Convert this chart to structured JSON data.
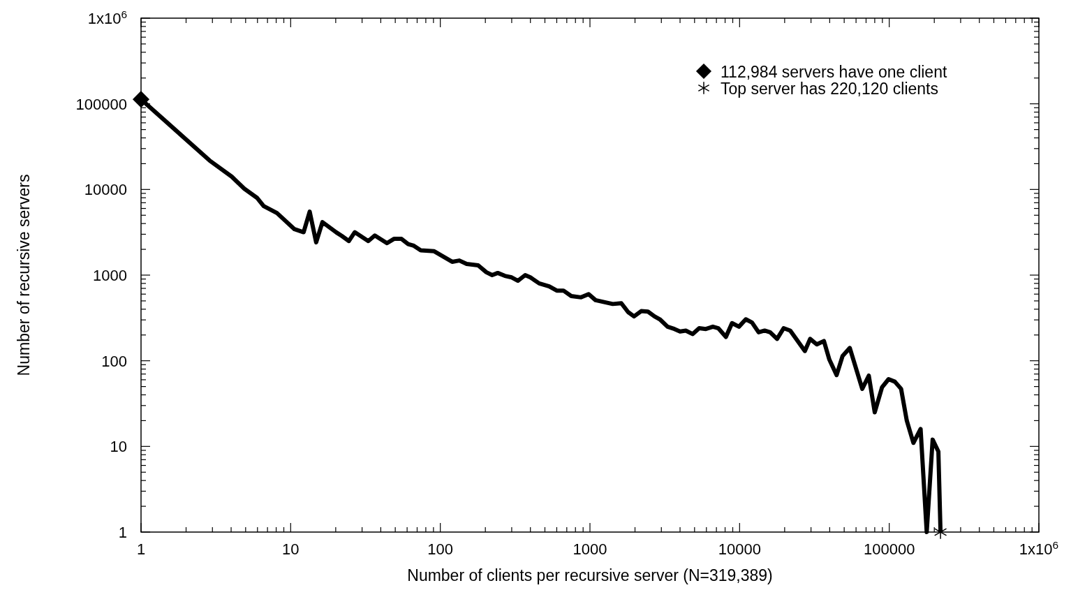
{
  "chart_data": {
    "type": "line",
    "xlabel": "Number of clients per recursive server (N=319,389)",
    "ylabel": "Number of recursive servers",
    "log": "xy",
    "xlim": [
      1,
      1000000
    ],
    "ylim": [
      1,
      1000000
    ],
    "xticks": [
      1,
      {
        "value": 2,
        "label": null
      },
      {
        "value": 3,
        "label": null
      },
      {
        "value": 4,
        "label": null
      },
      {
        "value": 5,
        "label": null
      },
      {
        "value": 6,
        "label": null
      },
      {
        "value": 7,
        "label": null
      },
      {
        "value": 8,
        "label": null
      },
      {
        "value": 9,
        "label": null
      },
      10,
      {
        "value": 20,
        "label": null
      },
      {
        "value": 30,
        "label": null
      },
      {
        "value": 40,
        "label": null
      },
      {
        "value": 50,
        "label": null
      },
      {
        "value": 60,
        "label": null
      },
      {
        "value": 70,
        "label": null
      },
      {
        "value": 80,
        "label": null
      },
      {
        "value": 90,
        "label": null
      },
      100,
      {
        "value": 200,
        "label": null
      },
      {
        "value": 300,
        "label": null
      },
      {
        "value": 400,
        "label": null
      },
      {
        "value": 500,
        "label": null
      },
      {
        "value": 600,
        "label": null
      },
      {
        "value": 700,
        "label": null
      },
      {
        "value": 800,
        "label": null
      },
      {
        "value": 900,
        "label": null
      },
      1000,
      {
        "value": 2000,
        "label": null
      },
      {
        "value": 3000,
        "label": null
      },
      {
        "value": 4000,
        "label": null
      },
      {
        "value": 5000,
        "label": null
      },
      {
        "value": 6000,
        "label": null
      },
      {
        "value": 7000,
        "label": null
      },
      {
        "value": 8000,
        "label": null
      },
      {
        "value": 9000,
        "label": null
      },
      10000,
      {
        "value": 20000,
        "label": null
      },
      {
        "value": 30000,
        "label": null
      },
      {
        "value": 40000,
        "label": null
      },
      {
        "value": 50000,
        "label": null
      },
      {
        "value": 60000,
        "label": null
      },
      {
        "value": 70000,
        "label": null
      },
      {
        "value": 80000,
        "label": null
      },
      {
        "value": 90000,
        "label": null
      },
      100000,
      {
        "value": 200000,
        "label": null
      },
      {
        "value": 300000,
        "label": null
      },
      {
        "value": 400000,
        "label": null
      },
      {
        "value": 500000,
        "label": null
      },
      {
        "value": 600000,
        "label": null
      },
      {
        "value": 700000,
        "label": null
      },
      {
        "value": 800000,
        "label": null
      },
      {
        "value": 900000,
        "label": null
      },
      {
        "value": 1000000,
        "label": "1x10$^{6}$"
      }
    ],
    "yticks": [
      1,
      {
        "value": 2,
        "label": null
      },
      {
        "value": 3,
        "label": null
      },
      {
        "value": 4,
        "label": null
      },
      {
        "value": 5,
        "label": null
      },
      {
        "value": 6,
        "label": null
      },
      {
        "value": 7,
        "label": null
      },
      {
        "value": 8,
        "label": null
      },
      {
        "value": 9,
        "label": null
      },
      10,
      {
        "value": 20,
        "label": null
      },
      {
        "value": 30,
        "label": null
      },
      {
        "value": 40,
        "label": null
      },
      {
        "value": 50,
        "label": null
      },
      {
        "value": 60,
        "label": null
      },
      {
        "value": 70,
        "label": null
      },
      {
        "value": 80,
        "label": null
      },
      {
        "value": 90,
        "label": null
      },
      100,
      {
        "value": 200,
        "label": null
      },
      {
        "value": 300,
        "label": null
      },
      {
        "value": 400,
        "label": null
      },
      {
        "value": 500,
        "label": null
      },
      {
        "value": 600,
        "label": null
      },
      {
        "value": 700,
        "label": null
      },
      {
        "value": 800,
        "label": null
      },
      {
        "value": 900,
        "label": null
      },
      1000,
      {
        "value": 2000,
        "label": null
      },
      {
        "value": 3000,
        "label": null
      },
      {
        "value": 4000,
        "label": null
      },
      {
        "value": 5000,
        "label": null
      },
      {
        "value": 6000,
        "label": null
      },
      {
        "value": 7000,
        "label": null
      },
      {
        "value": 8000,
        "label": null
      },
      {
        "value": 9000,
        "label": null
      },
      10000,
      {
        "value": 20000,
        "label": null
      },
      {
        "value": 30000,
        "label": null
      },
      {
        "value": 40000,
        "label": null
      },
      {
        "value": 50000,
        "label": null
      },
      {
        "value": 60000,
        "label": null
      },
      {
        "value": 70000,
        "label": null
      },
      {
        "value": 80000,
        "label": null
      },
      {
        "value": 90000,
        "label": null
      },
      100000,
      {
        "value": 200000,
        "label": null
      },
      {
        "value": 300000,
        "label": null
      },
      {
        "value": 400000,
        "label": null
      },
      {
        "value": 500000,
        "label": null
      },
      {
        "value": 600000,
        "label": null
      },
      {
        "value": 700000,
        "label": null
      },
      {
        "value": 800000,
        "label": null
      },
      {
        "value": 900000,
        "label": null
      },
      {
        "value": 1000000,
        "label": "1x10$^{6}$"
      }
    ],
    "grid": false,
    "legend": "top right",
    "line_style": "solid",
    "series": [
      {
        "type": "line",
        "color": "#000000",
        "marker": "none",
        "x": [
          1,
          2.87,
          4.04,
          4.9,
          5.95,
          6.6,
          8.1,
          10.6,
          12.2,
          13.4,
          14.8,
          16.3,
          20.2,
          22,
          24.5,
          26.8,
          33,
          36.5,
          44,
          49,
          55,
          61,
          66.5,
          74,
          91,
          120,
          134,
          150,
          179,
          203,
          222,
          242,
          270,
          300,
          330,
          369,
          400,
          458,
          534,
          600,
          665,
          750,
          872,
          980,
          1090,
          1420,
          1620,
          1800,
          1970,
          2200,
          2440,
          2700,
          2930,
          3300,
          3670,
          4000,
          4370,
          4850,
          5370,
          5950,
          6630,
          7200,
          8100,
          8900,
          9900,
          11000,
          12100,
          13400,
          14700,
          16000,
          17800,
          19700,
          21800,
          27300,
          29600,
          32800,
          36600,
          39800,
          44500,
          48800,
          54500,
          66000,
          73000,
          80000,
          89500,
          99000,
          109000,
          120000,
          131000,
          145000,
          162000,
          178000,
          195000,
          213000,
          220120
        ],
        "values": [
          112984,
          21800,
          14100,
          10200,
          8000,
          6400,
          5300,
          3440,
          3170,
          5500,
          2410,
          4160,
          3150,
          2860,
          2500,
          3170,
          2500,
          2900,
          2360,
          2650,
          2650,
          2300,
          2200,
          1950,
          1900,
          1430,
          1480,
          1350,
          1300,
          1080,
          1000,
          1060,
          980,
          940,
          860,
          1000,
          940,
          800,
          740,
          660,
          660,
          570,
          550,
          600,
          510,
          460,
          470,
          370,
          330,
          380,
          375,
          330,
          305,
          250,
          235,
          220,
          225,
          205,
          240,
          235,
          250,
          240,
          190,
          275,
          250,
          305,
          280,
          215,
          225,
          215,
          180,
          240,
          225,
          130,
          180,
          155,
          170,
          103,
          68,
          114,
          141,
          47,
          67,
          25,
          49,
          61,
          57,
          47,
          20,
          11,
          16,
          1,
          12,
          8.7,
          1
        ]
      },
      {
        "type": "scatter",
        "name": "112,984 servers have one client",
        "color": "#000000",
        "marker": "diamond",
        "x": [
          1
        ],
        "values": [
          112984
        ]
      },
      {
        "type": "scatter",
        "name": "Top server has 220,120 clients",
        "color": "#000000",
        "marker": "cross",
        "x": [
          220120
        ],
        "values": [
          1
        ]
      }
    ]
  }
}
